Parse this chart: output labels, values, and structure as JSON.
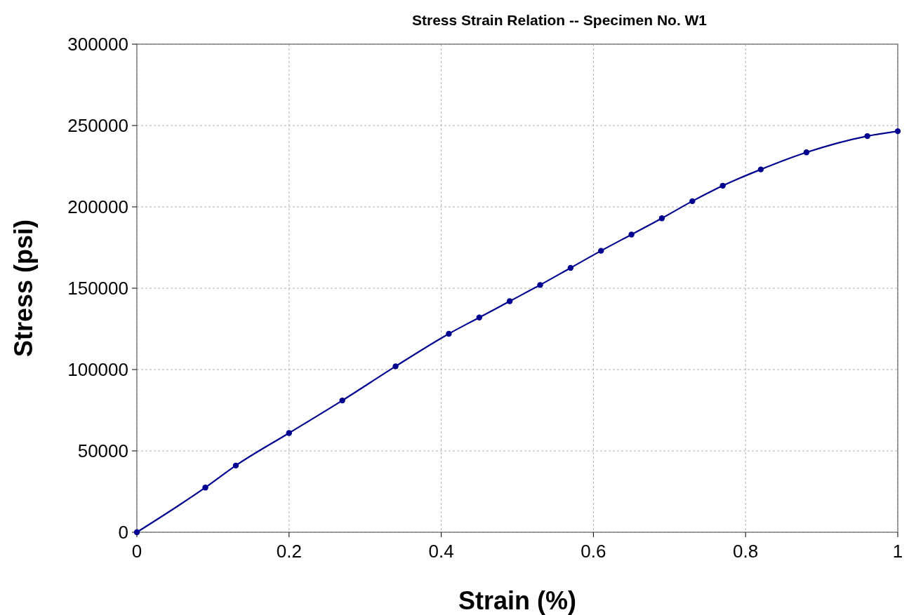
{
  "chart_data": {
    "type": "line",
    "title": "Stress Strain Relation -- Specimen No. W1",
    "xlabel": "Strain (%)",
    "ylabel": "Stress (psi)",
    "x": [
      0,
      0.09,
      0.13,
      0.2,
      0.27,
      0.34,
      0.41,
      0.45,
      0.49,
      0.53,
      0.57,
      0.61,
      0.65,
      0.69,
      0.73,
      0.77,
      0.82,
      0.88,
      0.96,
      1.0
    ],
    "series": [
      {
        "color": "#000090",
        "values": [
          0,
          27500,
          41000,
          61000,
          81000,
          102000,
          122000,
          132000,
          142000,
          152000,
          162500,
          173000,
          183000,
          193000,
          203500,
          213000,
          223000,
          233500,
          243500,
          246500
        ]
      }
    ],
    "xlim": [
      0,
      1
    ],
    "xticks": [
      0,
      0.2,
      0.4,
      0.6,
      0.8,
      1
    ],
    "ylim": [
      0,
      300000
    ],
    "yticks": [
      0,
      50000,
      100000,
      150000,
      200000,
      250000,
      300000
    ],
    "grid": true,
    "marker": "circle",
    "line_style": "solid"
  }
}
